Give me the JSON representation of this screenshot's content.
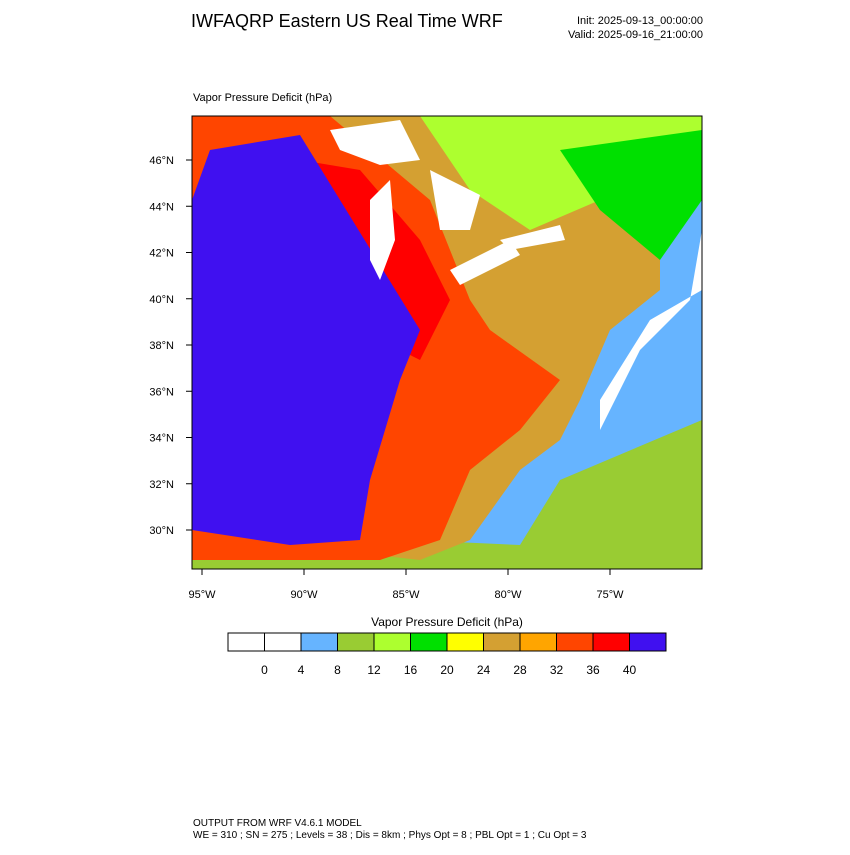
{
  "header": {
    "title": "IWFAQRP Eastern US Real Time WRF",
    "init": "Init: 2025-09-13_00:00:00",
    "valid": "Valid: 2025-09-16_21:00:00"
  },
  "map": {
    "label": "Vapor Pressure Deficit   (hPa)",
    "lat_labels": [
      "46°N",
      "44°N",
      "42°N",
      "40°N",
      "38°N",
      "36°N",
      "34°N",
      "32°N",
      "30°N"
    ],
    "lon_labels": [
      "95°W",
      "90°W",
      "85°W",
      "80°W",
      "75°W"
    ]
  },
  "colorbar": {
    "title": "Vapor Pressure Deficit  (hPa)",
    "levels": [
      0,
      4,
      8,
      12,
      16,
      20,
      24,
      28,
      32,
      36,
      40
    ],
    "colors": [
      "#ffffff",
      "#ffffff",
      "#66b4ff",
      "#99cc33",
      "#adff2f",
      "#00e000",
      "#ffff00",
      "#d4a032",
      "#ffa500",
      "#ff4500",
      "#ff0000",
      "#4010f0"
    ]
  },
  "footer": {
    "line1": "OUTPUT FROM WRF V4.6.1 MODEL",
    "line2": "WE = 310 ; SN = 275 ; Levels = 38 ; Dis = 8km ; Phys Opt = 8 ; PBL Opt = 1 ; Cu Opt = 3"
  }
}
